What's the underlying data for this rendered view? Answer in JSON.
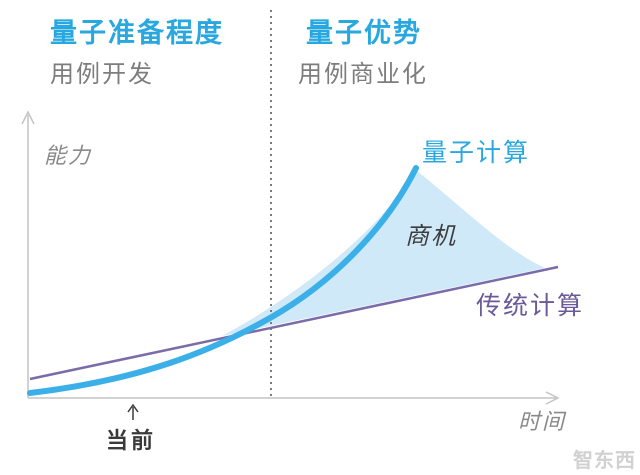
{
  "left_panel": {
    "title": "量子准备程度",
    "subtitle": "用例开发"
  },
  "right_panel": {
    "title": "量子优势",
    "subtitle": "用例商业化"
  },
  "y_axis_label": "能力",
  "x_axis_label": "时间",
  "curves": {
    "quantum": "量子计算",
    "classical": "传统计算"
  },
  "opportunity_label": "商机",
  "marker_label": "当前",
  "watermark": "智东西",
  "colors": {
    "quantum": "#3bb0e8",
    "classical": "#7b6ba8",
    "fill": "#cfe9f9",
    "divider": "#7a7a7a",
    "axis": "#c4c4c4"
  }
}
